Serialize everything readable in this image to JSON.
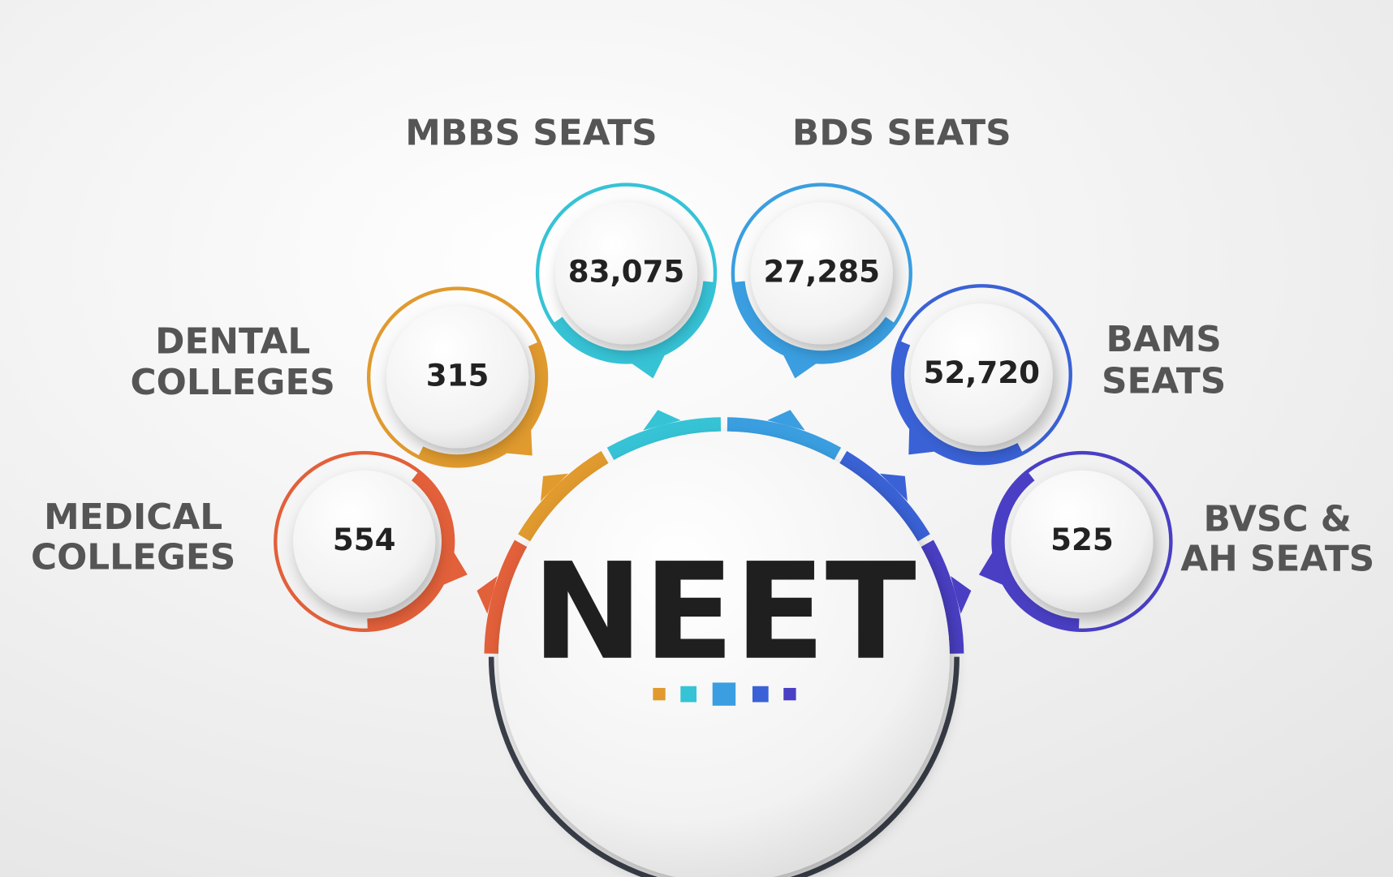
{
  "center": {
    "title": "NEET"
  },
  "items": [
    {
      "label": [
        "MEDICAL",
        "COLLEGES"
      ],
      "value": "554",
      "color": "#e2603a"
    },
    {
      "label": [
        "DENTAL",
        "COLLEGES"
      ],
      "value": "315",
      "color": "#e09a2e"
    },
    {
      "label": [
        "MBBS SEATS"
      ],
      "value": "83,075",
      "color": "#36c3d6"
    },
    {
      "label": [
        "BDS SEATS"
      ],
      "value": "27,285",
      "color": "#3a9ee0"
    },
    {
      "label": [
        "BAMS",
        "SEATS"
      ],
      "value": "52,720",
      "color": "#3a62d6"
    },
    {
      "label": [
        "BVSC &",
        "AH SEATS"
      ],
      "value": "525",
      "color": "#4a3fc4"
    }
  ]
}
